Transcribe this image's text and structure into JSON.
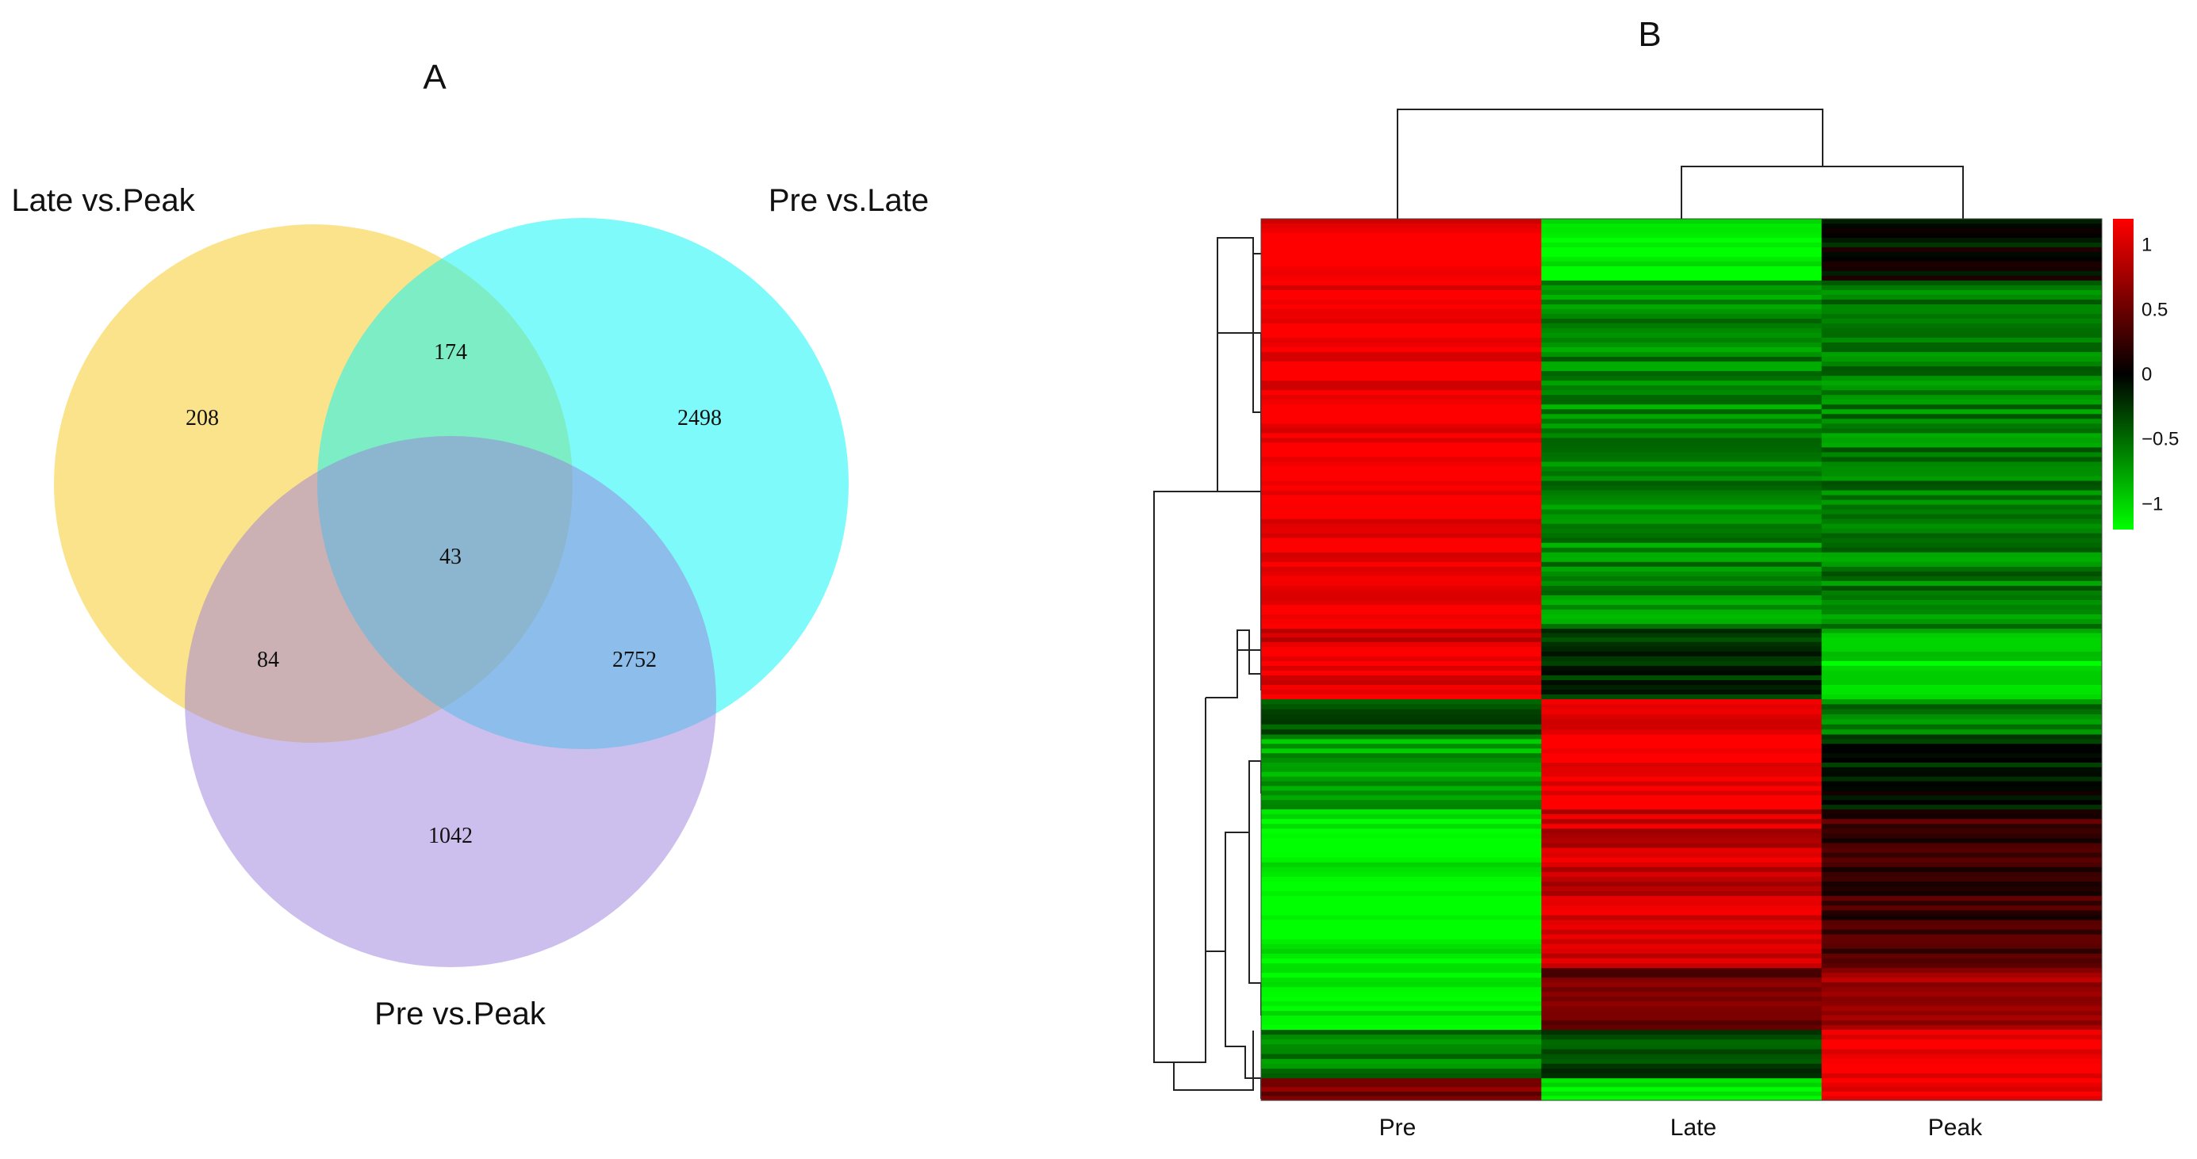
{
  "chart_data": [
    {
      "type": "venn",
      "panel_label": "A",
      "sets": [
        {
          "name": "Late vs.Peak",
          "color": "#f7d44c"
        },
        {
          "name": "Pre vs.Late",
          "color": "#14f5f5"
        },
        {
          "name": "Pre vs.Peak",
          "color": "#9b7fdc"
        }
      ],
      "regions": [
        {
          "sets": [
            "Late vs.Peak"
          ],
          "count": "208"
        },
        {
          "sets": [
            "Pre vs.Late"
          ],
          "count": "2498"
        },
        {
          "sets": [
            "Pre vs.Peak"
          ],
          "count": "1042"
        },
        {
          "sets": [
            "Late vs.Peak",
            "Pre vs.Late"
          ],
          "count": "174"
        },
        {
          "sets": [
            "Late vs.Peak",
            "Pre vs.Peak"
          ],
          "count": "84"
        },
        {
          "sets": [
            "Pre vs.Late",
            "Pre vs.Peak"
          ],
          "count": "2752"
        },
        {
          "sets": [
            "Late vs.Peak",
            "Pre vs.Late",
            "Pre vs.Peak"
          ],
          "count": "43"
        }
      ]
    },
    {
      "type": "heatmap",
      "panel_label": "B",
      "columns": [
        "Pre",
        "Late",
        "Peak"
      ],
      "column_dendrogram": "Pre | (Late, Peak)",
      "color_scale": {
        "low": "#00ff00",
        "mid": "#000000",
        "high": "#ff0000",
        "min": -1.2,
        "max": 1.2,
        "ticks": [
          "1",
          "0.5",
          "0",
          "−0.5",
          "−1"
        ],
        "tick_values": [
          1,
          0.5,
          0,
          -0.5,
          -1
        ]
      },
      "row_blocks": [
        {
          "fraction": 0.07,
          "values": [
            1.2,
            -1.2,
            -0.05
          ]
        },
        {
          "fraction": 0.395,
          "values": [
            1.2,
            -0.65,
            -0.6
          ]
        },
        {
          "fraction": 0.015,
          "values": [
            0.9,
            -0.35,
            -1.0
          ]
        },
        {
          "fraction": 0.065,
          "values": [
            1.1,
            -0.25,
            -1.1
          ]
        },
        {
          "fraction": 0.04,
          "values": [
            -0.45,
            1.2,
            -0.6
          ]
        },
        {
          "fraction": 0.085,
          "values": [
            -0.8,
            1.2,
            -0.1
          ]
        },
        {
          "fraction": 0.18,
          "values": [
            -1.2,
            0.95,
            0.3
          ]
        },
        {
          "fraction": 0.07,
          "values": [
            -1.2,
            0.55,
            0.75
          ]
        },
        {
          "fraction": 0.055,
          "values": [
            -0.6,
            -0.3,
            1.2
          ]
        },
        {
          "fraction": 0.025,
          "values": [
            0.5,
            -1.2,
            1.2
          ]
        }
      ]
    }
  ]
}
